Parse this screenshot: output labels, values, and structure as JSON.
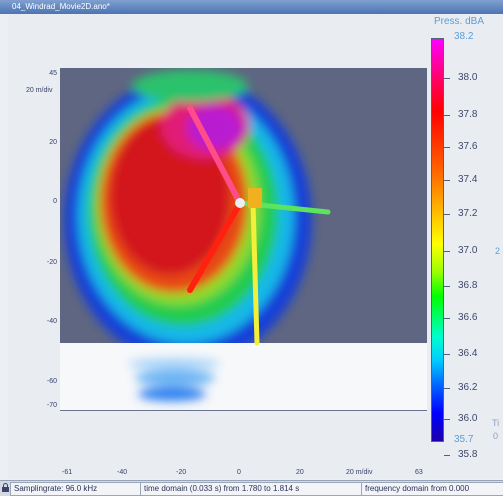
{
  "window": {
    "title": "04_Windrad_Movie2D.ano*"
  },
  "plot": {
    "y_scale_label": "20 m/div",
    "x_scale_label": "20 m/div",
    "y_ticks": [
      "45",
      "20",
      "0",
      "-20",
      "-40",
      "-60",
      "-70"
    ],
    "x_ticks": [
      "-61",
      "-40",
      "-20",
      "0",
      "20",
      "63"
    ]
  },
  "colorbar": {
    "title": "Press. dBA",
    "max_label": "38.2",
    "min_label": "35.7",
    "labels": [
      "38.0",
      "37.8",
      "37.6",
      "37.4",
      "37.2",
      "37.0",
      "36.8",
      "36.6",
      "36.4",
      "36.2",
      "36.0",
      "35.8"
    ],
    "cut_label": "2",
    "cut_label_bottom_1": "Ti",
    "cut_label_bottom_2": "0"
  },
  "status": {
    "samplingrate": "Samplingrate: 96.0 kHz",
    "time_domain": "time domain (0.033 s) from 1.780 to 1.814 s",
    "frequency_domain": "frequency domain from 0.000"
  }
}
